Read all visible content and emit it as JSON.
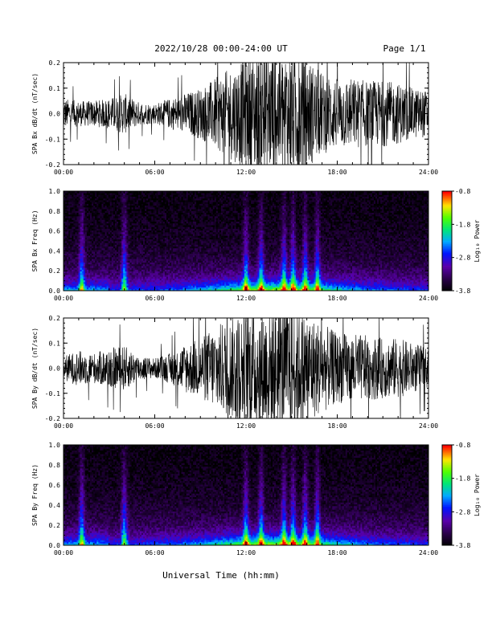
{
  "header": {
    "title": "2022/10/28  00:00-24:00 UT",
    "page": "Page 1/1"
  },
  "footer": {
    "xlabel": "Universal Time (hh:mm)"
  },
  "chart_data": [
    {
      "type": "line",
      "ylabel": "SPA Bx dB/dt (nT/sec)",
      "xlim": [
        0,
        24
      ],
      "ylim": [
        -0.2,
        0.2
      ],
      "x_ticks": [
        "00:00",
        "06:00",
        "12:00",
        "18:00",
        "24:00"
      ],
      "y_ticks": [
        "-0.2",
        "-0.1",
        "0.0",
        "0.1",
        "0.2"
      ],
      "y_tick_values": [
        -0.2,
        -0.1,
        0.0,
        0.1,
        0.2
      ],
      "envelope": {
        "hours": [
          0,
          1,
          2,
          3,
          4,
          5,
          6,
          7,
          8,
          9,
          10,
          11,
          12,
          13,
          14,
          15,
          16,
          17,
          18,
          19,
          20,
          21,
          22,
          23,
          24
        ],
        "amplitude": [
          0.06,
          0.05,
          0.05,
          0.06,
          0.08,
          0.045,
          0.04,
          0.06,
          0.08,
          0.1,
          0.14,
          0.18,
          0.22,
          0.25,
          0.25,
          0.25,
          0.22,
          0.16,
          0.14,
          0.14,
          0.13,
          0.13,
          0.12,
          0.1,
          0.09
        ]
      }
    },
    {
      "type": "heatmap",
      "ylabel": "SPA Bx Freq (Hz)",
      "colorbar_label": "Log₁₀ Power",
      "colorbar_ticks": [
        "-0.8",
        "-1.8",
        "-2.8",
        "-3.8"
      ],
      "colorbar_range": [
        -3.8,
        -0.8
      ],
      "xlim": [
        0,
        24
      ],
      "ylim": [
        0,
        1.0
      ],
      "x_ticks": [
        "00:00",
        "06:00",
        "12:00",
        "18:00",
        "24:00"
      ],
      "y_ticks": [
        "0.0",
        "0.2",
        "0.4",
        "0.6",
        "0.8",
        "1.0"
      ],
      "y_tick_values": [
        0.0,
        0.2,
        0.4,
        0.6,
        0.8,
        1.0
      ],
      "bursts": [
        1.2,
        4.0,
        12.0,
        13.0,
        14.5,
        15.1,
        15.9,
        16.7
      ]
    },
    {
      "type": "line",
      "ylabel": "SPA By dB/dt (nT/sec)",
      "xlim": [
        0,
        24
      ],
      "ylim": [
        -0.2,
        0.2
      ],
      "x_ticks": [
        "00:00",
        "06:00",
        "12:00",
        "18:00",
        "24:00"
      ],
      "y_ticks": [
        "-0.2",
        "-0.1",
        "0.0",
        "0.1",
        "0.2"
      ],
      "y_tick_values": [
        -0.2,
        -0.1,
        0.0,
        0.1,
        0.2
      ],
      "envelope": {
        "hours": [
          0,
          1,
          2,
          3,
          4,
          5,
          6,
          7,
          8,
          9,
          10,
          11,
          12,
          13,
          14,
          15,
          16,
          17,
          18,
          19,
          20,
          21,
          22,
          23,
          24
        ],
        "amplitude": [
          0.05,
          0.07,
          0.06,
          0.08,
          0.09,
          0.05,
          0.04,
          0.06,
          0.1,
          0.12,
          0.17,
          0.2,
          0.24,
          0.25,
          0.25,
          0.25,
          0.22,
          0.18,
          0.14,
          0.14,
          0.13,
          0.12,
          0.12,
          0.1,
          0.08
        ]
      }
    },
    {
      "type": "heatmap",
      "ylabel": "SPA By Freq (Hz)",
      "colorbar_label": "Log₁₀ Power",
      "colorbar_ticks": [
        "-0.8",
        "-1.8",
        "-2.8",
        "-3.8"
      ],
      "colorbar_range": [
        -3.8,
        -0.8
      ],
      "xlim": [
        0,
        24
      ],
      "ylim": [
        0,
        1.0
      ],
      "x_ticks": [
        "00:00",
        "06:00",
        "12:00",
        "18:00",
        "24:00"
      ],
      "y_ticks": [
        "0.0",
        "0.2",
        "0.4",
        "0.6",
        "0.8",
        "1.0"
      ],
      "y_tick_values": [
        0.0,
        0.2,
        0.4,
        0.6,
        0.8,
        1.0
      ],
      "bursts": [
        1.2,
        4.0,
        12.0,
        13.0,
        14.5,
        15.1,
        15.9,
        16.7
      ]
    }
  ]
}
